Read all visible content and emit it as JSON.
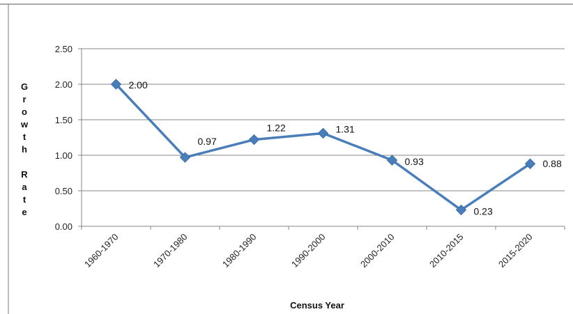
{
  "chart_data": {
    "type": "line",
    "title": "",
    "xlabel": "Census Year",
    "ylabel": "Growth Rate",
    "categories": [
      "1960-1970",
      "1970-1980",
      "1980-1990",
      "1990-2000",
      "2000-2010",
      "2010-2015",
      "2015-2020"
    ],
    "series": [
      {
        "values": [
          2.0,
          0.97,
          1.22,
          1.31,
          0.93,
          0.23,
          0.88
        ]
      }
    ],
    "data_labels": [
      "2.00",
      "0.97",
      "1.22",
      "1.31",
      "0.93",
      "0.23",
      "0.88"
    ],
    "y_ticks": [
      "0.00",
      "0.50",
      "1.00",
      "1.50",
      "2.00",
      "2.50"
    ],
    "ylim": [
      0,
      2.5
    ],
    "grid": true,
    "legend": "none",
    "colors": {
      "line": "#4a7ebb",
      "marker": "#4a7ebb",
      "grid": "#868686",
      "axis": "#868686",
      "frame": "#555555"
    }
  }
}
